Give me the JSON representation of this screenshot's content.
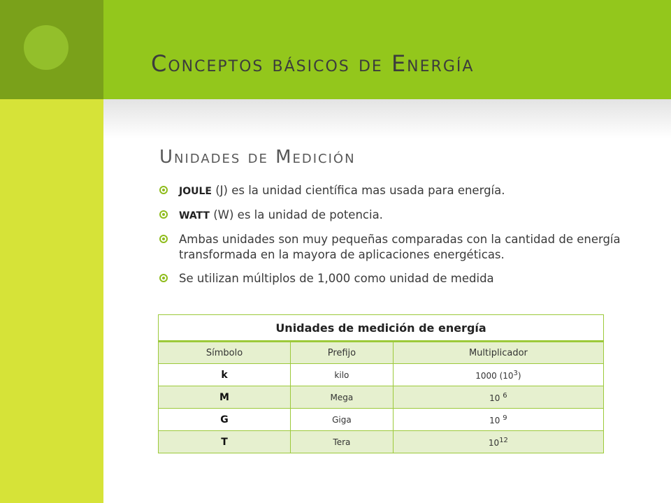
{
  "slide": {
    "title": "Conceptos básicos de Energía",
    "subtitle": "Unidades de Medición"
  },
  "bullets": [
    {
      "bold": "JOULE",
      "text": " (J) es la unidad científica mas usada para energía."
    },
    {
      "bold": "WATT",
      "text": " (W) es la unidad de potencia."
    },
    {
      "bold": "",
      "text": "Ambas unidades son muy pequeñas comparadas con la cantidad de energía transformada en la mayora de aplicaciones energéticas."
    },
    {
      "bold": "",
      "text": "Se utilizan múltiplos de 1,000 como unidad de medida"
    }
  ],
  "table": {
    "caption": "Unidades de medición de energía",
    "headers": [
      "Símbolo",
      "Prefijo",
      "Multiplicador"
    ],
    "rows": [
      {
        "symbol": "k",
        "prefix": "kilo",
        "mult_base": "1000 (10",
        "mult_exp": "3",
        "mult_tail": ")"
      },
      {
        "symbol": "M",
        "prefix": "Mega",
        "mult_base": "10 ",
        "mult_exp": "6",
        "mult_tail": ""
      },
      {
        "symbol": "G",
        "prefix": "Giga",
        "mult_base": "10 ",
        "mult_exp": "9",
        "mult_tail": ""
      },
      {
        "symbol": "T",
        "prefix": "Tera",
        "mult_base": "10",
        "mult_exp": "12",
        "mult_tail": ""
      }
    ]
  },
  "colors": {
    "sidebar_dark": "#7aa11a",
    "sidebar_light": "#d6e338",
    "header": "#93c71c",
    "accent": "#8fbc1c",
    "table_border": "#9cc93a",
    "table_alt_row": "#e6f0cf"
  },
  "icons": {
    "bullet": "circled-dot-bullet-icon",
    "decoration": "circle-decoration"
  }
}
